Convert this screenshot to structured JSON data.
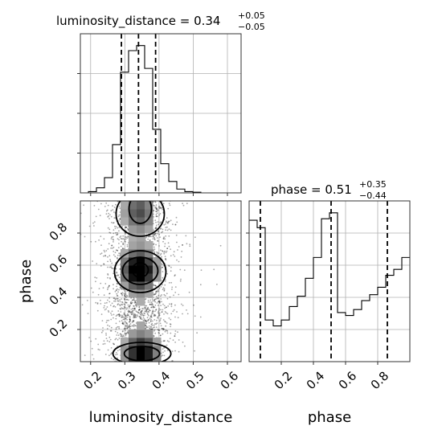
{
  "chart_data": {
    "type": "corner",
    "parameters": [
      "luminosity_distance",
      "phase"
    ],
    "titles": [
      {
        "name": "luminosity_distance",
        "value": "0.34",
        "plus": "+0.05",
        "minus": "−0.05"
      },
      {
        "name": "phase",
        "value": "0.51",
        "plus": "+0.35",
        "minus": "−0.44"
      }
    ],
    "xlabels": [
      "luminosity_distance",
      "phase"
    ],
    "ylabel": "phase",
    "luminosity_distance": {
      "range": [
        0.17,
        0.64
      ],
      "ticks": [
        0.2,
        0.3,
        0.4,
        0.5,
        0.6
      ],
      "tick_labels": [
        "0.2",
        "0.3",
        "0.4",
        "0.5",
        "0.6"
      ],
      "quantiles": [
        0.29,
        0.34,
        0.39
      ],
      "hist": {
        "edges": [
          0.17,
          0.1935,
          0.217,
          0.2405,
          0.264,
          0.2875,
          0.311,
          0.3345,
          0.358,
          0.3815,
          0.405,
          0.4285,
          0.452,
          0.4755,
          0.499,
          0.5225,
          0.546,
          0.5695,
          0.593,
          0.6165,
          0.64
        ],
        "counts": [
          0,
          1,
          4,
          12,
          38,
          95,
          112,
          116,
          98,
          50,
          23,
          9,
          3,
          1,
          0.5,
          0,
          0,
          0,
          0,
          0
        ]
      }
    },
    "phase": {
      "range": [
        0.0,
        1.0
      ],
      "ticks": [
        0.2,
        0.4,
        0.6,
        0.8
      ],
      "tick_labels": [
        "0.2",
        "0.4",
        "0.6",
        "0.8"
      ],
      "quantiles": [
        0.07,
        0.51,
        0.86
      ],
      "hist": {
        "edges": [
          0.0,
          0.05,
          0.1,
          0.15,
          0.2,
          0.25,
          0.3,
          0.35,
          0.4,
          0.45,
          0.5,
          0.55,
          0.6,
          0.65,
          0.7,
          0.75,
          0.8,
          0.85,
          0.9,
          0.95,
          1.0
        ],
        "counts": [
          95,
          90,
          28,
          24,
          28,
          37,
          44,
          56,
          70,
          96,
          100,
          33,
          31,
          35,
          41,
          45,
          50,
          58,
          62,
          70
        ]
      }
    },
    "joint": {
      "density_peaks": [
        {
          "x": 0.34,
          "y": 0.57,
          "level": 1.0
        },
        {
          "x": 0.35,
          "y": 0.05,
          "level": 0.85
        },
        {
          "x": 0.34,
          "y": 0.93,
          "level": 0.45
        }
      ]
    }
  }
}
